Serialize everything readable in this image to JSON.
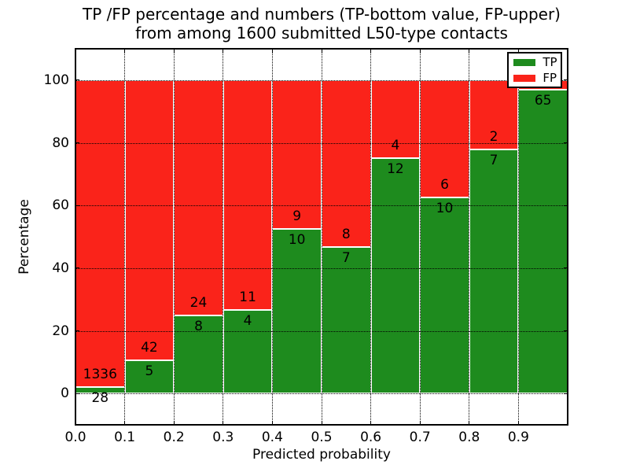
{
  "chart_data": {
    "type": "bar",
    "stacked": true,
    "normalized_to_percent": true,
    "title_line1": "TP /FP percentage and numbers (TP-bottom value, FP-upper)",
    "title_line2": "from among 1600 submitted L50-type contacts",
    "xlabel": "Predicted probability",
    "ylabel": "Percentage",
    "total_contacts_in_title": "1600",
    "colors": {
      "tp": "#1e8b1e",
      "fp": "#fa231a",
      "grid": "#000000",
      "axis": "#000000",
      "background": "#ffffff"
    },
    "grid": "dotted",
    "legend": {
      "position": "upper-right",
      "entries": [
        {
          "label": "TP",
          "color": "#1e8b1e"
        },
        {
          "label": "FP",
          "color": "#fa231a"
        }
      ]
    },
    "xlim": [
      0.0,
      1.0
    ],
    "ylim": [
      -10,
      110
    ],
    "xticks": [
      "0.0",
      "0.1",
      "0.2",
      "0.3",
      "0.4",
      "0.5",
      "0.6",
      "0.7",
      "0.8",
      "0.9"
    ],
    "yticks": [
      "0",
      "20",
      "40",
      "60",
      "80",
      "100"
    ],
    "bins": [
      {
        "x0": 0.0,
        "x1": 0.1,
        "tp": 28,
        "fp": 1336,
        "tp_label": "28",
        "fp_label": "1336"
      },
      {
        "x0": 0.1,
        "x1": 0.2,
        "tp": 5,
        "fp": 42,
        "tp_label": "5",
        "fp_label": "42"
      },
      {
        "x0": 0.2,
        "x1": 0.3,
        "tp": 8,
        "fp": 24,
        "tp_label": "8",
        "fp_label": "24"
      },
      {
        "x0": 0.3,
        "x1": 0.4,
        "tp": 4,
        "fp": 11,
        "tp_label": "4",
        "fp_label": "11"
      },
      {
        "x0": 0.4,
        "x1": 0.5,
        "tp": 10,
        "fp": 9,
        "tp_label": "10",
        "fp_label": "9"
      },
      {
        "x0": 0.5,
        "x1": 0.6,
        "tp": 7,
        "fp": 8,
        "tp_label": "7",
        "fp_label": "8"
      },
      {
        "x0": 0.6,
        "x1": 0.7,
        "tp": 12,
        "fp": 4,
        "tp_label": "12",
        "fp_label": "4"
      },
      {
        "x0": 0.7,
        "x1": 0.8,
        "tp": 10,
        "fp": 6,
        "tp_label": "10",
        "fp_label": "6"
      },
      {
        "x0": 0.8,
        "x1": 0.9,
        "tp": 7,
        "fp": 2,
        "tp_label": "7",
        "fp_label": "2"
      },
      {
        "x0": 0.9,
        "x1": 1.0,
        "tp": 65,
        "fp": 2,
        "tp_label": "65",
        "fp_label": ""
      }
    ]
  }
}
